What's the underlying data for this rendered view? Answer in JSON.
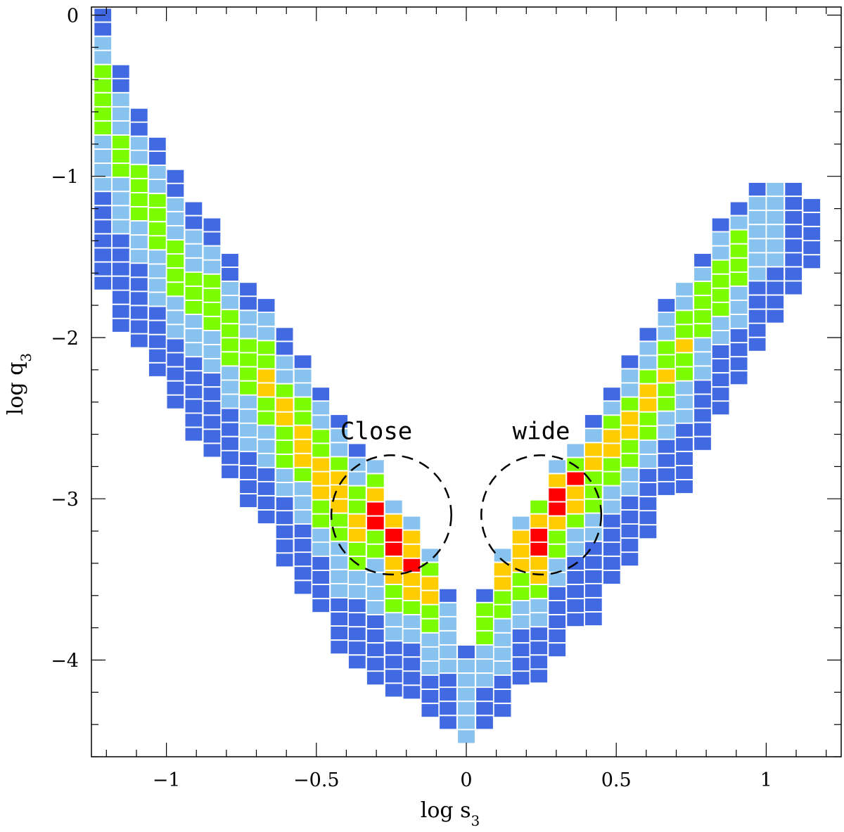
{
  "chart_data": {
    "type": "heatmap",
    "title": "",
    "xlabel": "log s",
    "xlabel_sub": "3",
    "ylabel": "log q",
    "ylabel_sub": "3",
    "xlim": [
      -1.25,
      1.25
    ],
    "ylim": [
      -4.6,
      0.05
    ],
    "xticks": [
      {
        "value": -1,
        "label": "−1"
      },
      {
        "value": -0.5,
        "label": "−0.5"
      },
      {
        "value": 0,
        "label": "0"
      },
      {
        "value": 0.5,
        "label": "0.5"
      },
      {
        "value": 1,
        "label": "1"
      }
    ],
    "yticks": [
      {
        "value": 0,
        "label": "0"
      },
      {
        "value": -1,
        "label": "−1"
      },
      {
        "value": -2,
        "label": "−2"
      },
      {
        "value": -3,
        "label": "−3"
      },
      {
        "value": -4,
        "label": "−4"
      }
    ],
    "cell_size": {
      "dx": 0.0606,
      "dy": 0.0875
    },
    "level_colors": [
      "#4169E1",
      "#87C3EE",
      "#7CFC00",
      "#FFCC00",
      "#FF0000"
    ],
    "columns": [
      {
        "x": -1.212,
        "top": 0.0,
        "levels": [
          0,
          0,
          1,
          1,
          2,
          2,
          2,
          2,
          2,
          1,
          1,
          1,
          1,
          0,
          0,
          0,
          0,
          0,
          0,
          0
        ]
      },
      {
        "x": -1.152,
        "top": -0.35,
        "levels": [
          0,
          0,
          1,
          1,
          1,
          2,
          2,
          2,
          1,
          1,
          1,
          1,
          0,
          0,
          0,
          0,
          0,
          0,
          0
        ]
      },
      {
        "x": -1.091,
        "top": -0.62,
        "levels": [
          0,
          0,
          1,
          1,
          2,
          2,
          2,
          2,
          1,
          1,
          1,
          0,
          0,
          0,
          0,
          0,
          0
        ]
      },
      {
        "x": -1.03,
        "top": -0.8,
        "levels": [
          0,
          0,
          1,
          1,
          2,
          2,
          2,
          2,
          1,
          1,
          1,
          1,
          0,
          0,
          0,
          0,
          0
        ]
      },
      {
        "x": -0.97,
        "top": -1.0,
        "levels": [
          0,
          0,
          1,
          1,
          1,
          2,
          2,
          2,
          2,
          1,
          1,
          1,
          0,
          0,
          0,
          0,
          0
        ]
      },
      {
        "x": -0.909,
        "top": -1.2,
        "levels": [
          0,
          0,
          1,
          1,
          1,
          2,
          2,
          2,
          1,
          1,
          1,
          0,
          0,
          0,
          0,
          0,
          0
        ]
      },
      {
        "x": -0.848,
        "top": -1.3,
        "levels": [
          0,
          0,
          1,
          1,
          2,
          2,
          2,
          2,
          1,
          1,
          1,
          0,
          0,
          0,
          0,
          0,
          0
        ]
      },
      {
        "x": -0.788,
        "top": -1.52,
        "levels": [
          0,
          0,
          1,
          1,
          2,
          2,
          2,
          2,
          1,
          1,
          1,
          0,
          0,
          0,
          0,
          0
        ]
      },
      {
        "x": -0.727,
        "top": -1.7,
        "levels": [
          0,
          0,
          1,
          1,
          2,
          2,
          2,
          2,
          1,
          1,
          1,
          1,
          0,
          0,
          0,
          0
        ]
      },
      {
        "x": -0.667,
        "top": -1.8,
        "levels": [
          0,
          1,
          1,
          2,
          2,
          3,
          3,
          2,
          2,
          1,
          1,
          1,
          0,
          0,
          0,
          0
        ]
      },
      {
        "x": -0.606,
        "top": -1.98,
        "levels": [
          0,
          0,
          1,
          1,
          2,
          3,
          3,
          2,
          2,
          2,
          1,
          1,
          0,
          0,
          0,
          0,
          0
        ]
      },
      {
        "x": -0.545,
        "top": -2.15,
        "levels": [
          0,
          1,
          1,
          2,
          2,
          3,
          3,
          3,
          2,
          1,
          1,
          1,
          0,
          0,
          0,
          0,
          0
        ]
      },
      {
        "x": -0.485,
        "top": -2.35,
        "levels": [
          0,
          1,
          1,
          2,
          2,
          3,
          3,
          3,
          2,
          2,
          1,
          1,
          0,
          0,
          0,
          0
        ]
      },
      {
        "x": -0.424,
        "top": -2.52,
        "levels": [
          0,
          1,
          1,
          2,
          3,
          3,
          3,
          2,
          2,
          1,
          1,
          1,
          1,
          0,
          0,
          0,
          0
        ]
      },
      {
        "x": -0.364,
        "top": -2.7,
        "levels": [
          0,
          1,
          1,
          2,
          2,
          3,
          3,
          2,
          2,
          1,
          1,
          0,
          0,
          0,
          0,
          0
        ]
      },
      {
        "x": -0.303,
        "top": -2.8,
        "levels": [
          1,
          2,
          3,
          4,
          4,
          2,
          2,
          1,
          1,
          1,
          1,
          0,
          0,
          0,
          0,
          0
        ]
      },
      {
        "x": -0.242,
        "top": -3.05,
        "levels": [
          1,
          3,
          4,
          4,
          3,
          3,
          2,
          2,
          1,
          1,
          0,
          0,
          0,
          0
        ]
      },
      {
        "x": -0.182,
        "top": -3.15,
        "levels": [
          1,
          3,
          3,
          4,
          3,
          3,
          2,
          1,
          1,
          0,
          0,
          0,
          0
        ]
      },
      {
        "x": -0.121,
        "top": -3.35,
        "levels": [
          1,
          2,
          3,
          3,
          2,
          2,
          1,
          1,
          1,
          0,
          0,
          0
        ]
      },
      {
        "x": -0.061,
        "top": -3.6,
        "levels": [
          0,
          1,
          1,
          1,
          1,
          1,
          0,
          0,
          0,
          0
        ]
      },
      {
        "x": 0.0,
        "top": -3.95,
        "levels": [
          0,
          1,
          1,
          1,
          1,
          1,
          1
        ]
      },
      {
        "x": 0.061,
        "top": -3.6,
        "levels": [
          0,
          2,
          2,
          2,
          1,
          1,
          1,
          0,
          0,
          0
        ]
      },
      {
        "x": 0.121,
        "top": -3.35,
        "levels": [
          1,
          3,
          3,
          2,
          2,
          1,
          1,
          1,
          1,
          0,
          0,
          0
        ]
      },
      {
        "x": 0.182,
        "top": -3.15,
        "levels": [
          1,
          3,
          3,
          3,
          2,
          2,
          1,
          1,
          0,
          0,
          0,
          0
        ]
      },
      {
        "x": 0.242,
        "top": -3.05,
        "levels": [
          2,
          3,
          4,
          4,
          3,
          3,
          2,
          1,
          1,
          0,
          0,
          0,
          0
        ]
      },
      {
        "x": 0.303,
        "top": -2.8,
        "levels": [
          1,
          3,
          4,
          4,
          3,
          2,
          2,
          1,
          1,
          0,
          0,
          0,
          0,
          0
        ]
      },
      {
        "x": 0.364,
        "top": -2.7,
        "levels": [
          1,
          2,
          4,
          3,
          3,
          2,
          1,
          1,
          0,
          0,
          0,
          0,
          0
        ]
      },
      {
        "x": 0.424,
        "top": -2.52,
        "levels": [
          0,
          1,
          3,
          3,
          2,
          2,
          2,
          1,
          1,
          0,
          0,
          0,
          0,
          0,
          0
        ]
      },
      {
        "x": 0.485,
        "top": -2.35,
        "levels": [
          0,
          1,
          2,
          3,
          3,
          2,
          2,
          1,
          1,
          0,
          0,
          0,
          0,
          0
        ]
      },
      {
        "x": 0.545,
        "top": -2.15,
        "levels": [
          0,
          1,
          1,
          2,
          3,
          3,
          2,
          2,
          1,
          1,
          0,
          0,
          0,
          0,
          0
        ]
      },
      {
        "x": 0.606,
        "top": -1.98,
        "levels": [
          0,
          1,
          1,
          2,
          3,
          3,
          2,
          2,
          1,
          1,
          0,
          0,
          0,
          0,
          0
        ]
      },
      {
        "x": 0.667,
        "top": -1.8,
        "levels": [
          0,
          1,
          1,
          2,
          2,
          3,
          2,
          2,
          1,
          1,
          0,
          0,
          0,
          0
        ]
      },
      {
        "x": 0.727,
        "top": -1.7,
        "levels": [
          1,
          1,
          2,
          2,
          3,
          2,
          2,
          1,
          1,
          1,
          0,
          0,
          0,
          0,
          0
        ]
      },
      {
        "x": 0.788,
        "top": -1.52,
        "levels": [
          0,
          1,
          2,
          2,
          2,
          2,
          1,
          1,
          1,
          0,
          0,
          0,
          0,
          0
        ]
      },
      {
        "x": 0.848,
        "top": -1.3,
        "levels": [
          0,
          1,
          1,
          2,
          2,
          2,
          2,
          1,
          1,
          0,
          0,
          0,
          0,
          0
        ]
      },
      {
        "x": 0.909,
        "top": -1.2,
        "levels": [
          0,
          1,
          2,
          2,
          2,
          2,
          1,
          1,
          1,
          0,
          0,
          0,
          0
        ]
      },
      {
        "x": 0.97,
        "top": -1.08,
        "levels": [
          0,
          1,
          1,
          1,
          1,
          1,
          1,
          0,
          0,
          0,
          0,
          0
        ]
      },
      {
        "x": 1.03,
        "top": -1.08,
        "levels": [
          1,
          1,
          1,
          1,
          1,
          1,
          0,
          0,
          0,
          0
        ]
      },
      {
        "x": 1.091,
        "top": -1.08,
        "levels": [
          0,
          0,
          0,
          0,
          0,
          0,
          0,
          0
        ]
      },
      {
        "x": 1.152,
        "top": -1.18,
        "levels": [
          0,
          0,
          0,
          0,
          0
        ]
      }
    ],
    "annotations": [
      {
        "text": "Close",
        "x": -0.3,
        "y": -2.63
      },
      {
        "text": "wide",
        "x": 0.25,
        "y": -2.63
      }
    ],
    "circles": [
      {
        "name": "close",
        "cx": -0.25,
        "cy": -3.1,
        "rx": 0.2,
        "ry": 0.37
      },
      {
        "name": "wide",
        "cx": 0.25,
        "cy": -3.1,
        "rx": 0.2,
        "ry": 0.37
      }
    ]
  }
}
